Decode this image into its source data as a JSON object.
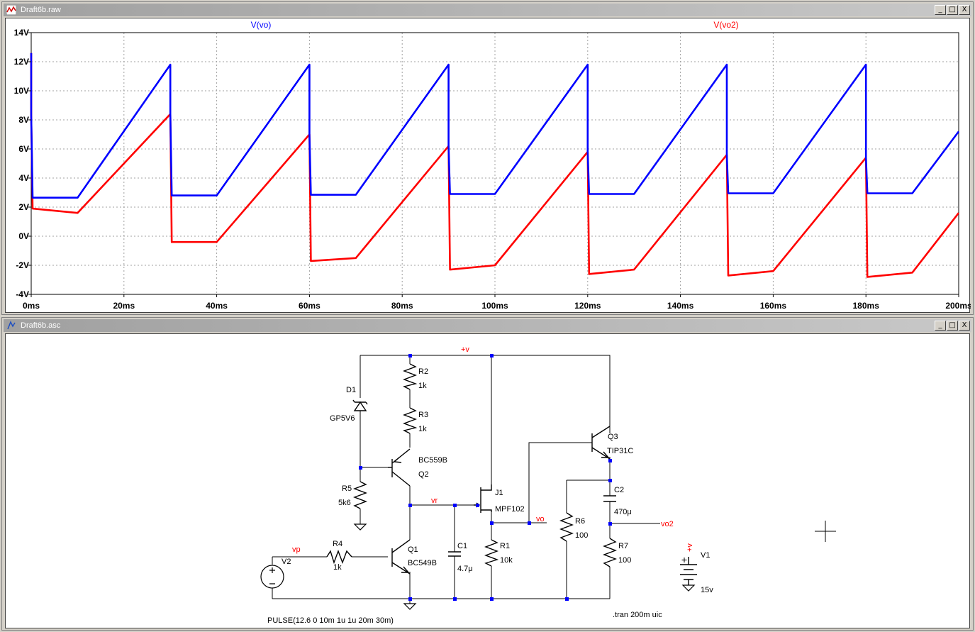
{
  "waveform_window": {
    "title": "Draft6b.raw",
    "traces": [
      {
        "name": "V(vo)",
        "color": "#0000ff"
      },
      {
        "name": "V(vo2)",
        "color": "#ff0000"
      }
    ]
  },
  "schematic_window": {
    "title": "Draft6b.asc",
    "labels": {
      "plus_v": "+v",
      "D1": "D1",
      "D1_val": "GP5V6",
      "R2": "R2",
      "R2_val": "1k",
      "R3": "R3",
      "R3_val": "1k",
      "Q2": "Q2",
      "Q2_val": "BC559B",
      "R5": "R5",
      "R5_val": "5k6",
      "vr": "vr",
      "J1": "J1",
      "J1_val": "MPF102",
      "vo": "vo",
      "Q3": "Q3",
      "Q3_val": "TIP31C",
      "C2": "C2",
      "C2_val": "470μ",
      "vo2": "vo2",
      "R6": "R6",
      "R6_val": "100",
      "R7": "R7",
      "R7_val": "100",
      "R1": "R1",
      "R1_val": "10k",
      "C1": "C1",
      "C1_val": "4.7μ",
      "Q1": "Q1",
      "Q1_val": "BC549B",
      "R4": "R4",
      "R4_val": "1k",
      "vp": "vp",
      "V2": "V2",
      "V1": "V1",
      "V1_val": "15v",
      "V1_plus": "+v",
      "pulse": "PULSE(12.6 0 10m 1u 1u 20m 30m)",
      "tran": ".tran 200m uic"
    }
  },
  "window_buttons": {
    "minimize": "_",
    "maximize": "□",
    "close": "X"
  },
  "chart_data": {
    "type": "line",
    "xlabel": "",
    "ylabel": "",
    "xlim": [
      0,
      200
    ],
    "ylim": [
      -4,
      14
    ],
    "x_ticks": [
      "0ms",
      "20ms",
      "40ms",
      "60ms",
      "80ms",
      "100ms",
      "120ms",
      "140ms",
      "160ms",
      "180ms",
      "200ms"
    ],
    "y_ticks": [
      "-4V",
      "-2V",
      "0V",
      "2V",
      "4V",
      "6V",
      "8V",
      "10V",
      "12V",
      "14V"
    ],
    "grid": true,
    "series": [
      {
        "name": "V(vo)",
        "color": "#0000ff",
        "x": [
          0,
          0,
          0.3,
          10,
          30,
          30,
          30.3,
          40,
          60,
          60,
          60.3,
          70,
          90,
          90,
          90.3,
          100,
          120,
          120,
          120.3,
          130,
          150,
          150,
          150.3,
          160,
          180,
          180,
          180.3,
          190,
          200
        ],
        "y": [
          12.6,
          8.3,
          2.65,
          2.65,
          11.8,
          8.4,
          2.8,
          2.8,
          11.8,
          7.0,
          2.85,
          2.85,
          11.8,
          6.2,
          2.9,
          2.9,
          11.8,
          5.8,
          2.9,
          2.9,
          11.8,
          5.6,
          2.95,
          2.95,
          11.8,
          5.4,
          2.95,
          2.95,
          7.2
        ]
      },
      {
        "name": "V(vo2)",
        "color": "#ff0000",
        "x": [
          0,
          0,
          0.3,
          10,
          30,
          30,
          30.3,
          40,
          60,
          60,
          60.3,
          70,
          90,
          90,
          90.3,
          100,
          120,
          120,
          120.3,
          130,
          150,
          150,
          150.3,
          160,
          180,
          180,
          180.3,
          190,
          200
        ],
        "y": [
          12.6,
          8.3,
          1.9,
          1.6,
          8.4,
          8.4,
          -0.4,
          -0.4,
          7.0,
          7.0,
          -1.7,
          -1.5,
          6.2,
          6.2,
          -2.3,
          -2.0,
          5.8,
          5.8,
          -2.6,
          -2.3,
          5.6,
          5.6,
          -2.7,
          -2.4,
          5.4,
          5.4,
          -2.8,
          -2.5,
          1.6
        ]
      }
    ]
  }
}
